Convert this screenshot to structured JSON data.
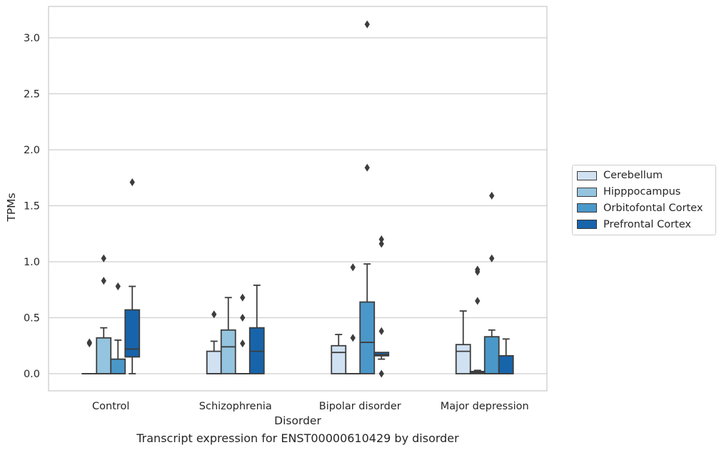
{
  "caption": "Transcript expression for ENST00000610429 by disorder",
  "chart_data": {
    "type": "box",
    "title": "",
    "xlabel": "Disorder",
    "ylabel": "TPMs",
    "ylim": [
      -0.15,
      3.3
    ],
    "yticks": [
      0.0,
      0.5,
      1.0,
      1.5,
      2.0,
      2.5,
      3.0
    ],
    "ytick_labels": [
      "0.0",
      "0.5",
      "1.0",
      "1.5",
      "2.0",
      "2.5",
      "3.0"
    ],
    "grid": "horizontal",
    "legend_position": "right",
    "categories": [
      "Control",
      "Schizophrenia",
      "Bipolar disorder",
      "Major depression"
    ],
    "series": [
      {
        "name": "Cerebellum",
        "color": "#d0e1f2",
        "boxes": [
          {
            "q1": 0.0,
            "median": 0.0,
            "q3": 0.0,
            "whisker_low": 0.0,
            "whisker_high": 0.0,
            "outliers": [
              0.27,
              0.28
            ]
          },
          {
            "q1": 0.0,
            "median": 0.0,
            "q3": 0.2,
            "whisker_low": 0.0,
            "whisker_high": 0.29,
            "outliers": [
              0.53
            ]
          },
          {
            "q1": 0.0,
            "median": 0.19,
            "q3": 0.25,
            "whisker_low": 0.0,
            "whisker_high": 0.35,
            "outliers": []
          },
          {
            "q1": 0.0,
            "median": 0.2,
            "q3": 0.26,
            "whisker_low": 0.0,
            "whisker_high": 0.56,
            "outliers": []
          }
        ]
      },
      {
        "name": "Hipppocampus",
        "color": "#94c4df",
        "boxes": [
          {
            "q1": 0.0,
            "median": 0.0,
            "q3": 0.32,
            "whisker_low": 0.0,
            "whisker_high": 0.41,
            "outliers": [
              0.83,
              1.03
            ]
          },
          {
            "q1": 0.0,
            "median": 0.24,
            "q3": 0.39,
            "whisker_low": 0.0,
            "whisker_high": 0.68,
            "outliers": []
          },
          {
            "q1": 0.0,
            "median": 0.0,
            "q3": 0.0,
            "whisker_low": 0.0,
            "whisker_high": 0.0,
            "outliers": [
              0.32,
              0.95
            ]
          },
          {
            "q1": 0.0,
            "median": 0.01,
            "q3": 0.02,
            "whisker_low": 0.0,
            "whisker_high": 0.03,
            "outliers": [
              0.65,
              0.91,
              0.93
            ]
          }
        ]
      },
      {
        "name": "Orbitofontal Cortex",
        "color": "#4a98c9",
        "boxes": [
          {
            "q1": 0.0,
            "median": 0.0,
            "q3": 0.13,
            "whisker_low": 0.0,
            "whisker_high": 0.3,
            "outliers": [
              0.78
            ]
          },
          {
            "q1": 0.0,
            "median": 0.0,
            "q3": 0.0,
            "whisker_low": 0.0,
            "whisker_high": 0.0,
            "outliers": [
              0.27,
              0.5,
              0.68
            ]
          },
          {
            "q1": 0.0,
            "median": 0.28,
            "q3": 0.64,
            "whisker_low": 0.0,
            "whisker_high": 0.98,
            "outliers": [
              1.84,
              3.12
            ]
          },
          {
            "q1": 0.0,
            "median": 0.0,
            "q3": 0.33,
            "whisker_low": 0.0,
            "whisker_high": 0.39,
            "outliers": [
              1.03,
              1.59
            ]
          }
        ]
      },
      {
        "name": "Prefrontal Cortex",
        "color": "#1764ab",
        "boxes": [
          {
            "q1": 0.15,
            "median": 0.22,
            "q3": 0.57,
            "whisker_low": 0.0,
            "whisker_high": 0.78,
            "outliers": [
              1.71
            ]
          },
          {
            "q1": 0.0,
            "median": 0.2,
            "q3": 0.41,
            "whisker_low": 0.0,
            "whisker_high": 0.79,
            "outliers": []
          },
          {
            "q1": 0.16,
            "median": 0.17,
            "q3": 0.19,
            "whisker_low": 0.13,
            "whisker_high": 0.19,
            "outliers": [
              0.0,
              0.38,
              1.16,
              1.2
            ]
          },
          {
            "q1": 0.0,
            "median": 0.0,
            "q3": 0.16,
            "whisker_low": 0.0,
            "whisker_high": 0.31,
            "outliers": []
          }
        ]
      }
    ]
  }
}
